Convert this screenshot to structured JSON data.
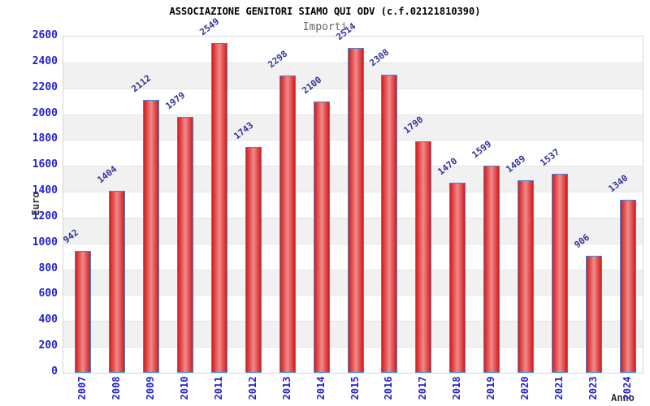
{
  "chart_data": {
    "type": "bar",
    "title": "ASSOCIAZIONE GENITORI SIAMO QUI ODV (c.f.02121810390)",
    "subtitle": "Importi",
    "xlabel": "Anno",
    "ylabel": "Euro",
    "categories": [
      "2007",
      "2008",
      "2009",
      "2010",
      "2011",
      "2012",
      "2013",
      "2014",
      "2015",
      "2016",
      "2017",
      "2018",
      "2019",
      "2020",
      "2021",
      "2023",
      "2024"
    ],
    "values": [
      942,
      1404,
      2112,
      1979,
      2549,
      1743,
      2298,
      2100,
      2514,
      2308,
      1790,
      1470,
      1599,
      1489,
      1537,
      906,
      1340
    ],
    "ylim": [
      0,
      2600
    ],
    "ytick_step": 200,
    "grid": "alternating horizontal bands with light gridlines",
    "legend": "none",
    "colors": {
      "bar_edge_fill": "#d41c1c",
      "bar_center_fill": "#f08a8a",
      "bar_border": "#4285d2",
      "axis_tick_text": "#2222cc",
      "value_label_text": "#333399",
      "band_gray": "#f1f1f1",
      "band_white": "#ffffff",
      "gridline": "#e6e6e6",
      "plot_border": "#d4d4d4",
      "title_text": "#000000",
      "subtitle_text": "#666666",
      "axis_title_text": "#333333"
    }
  }
}
